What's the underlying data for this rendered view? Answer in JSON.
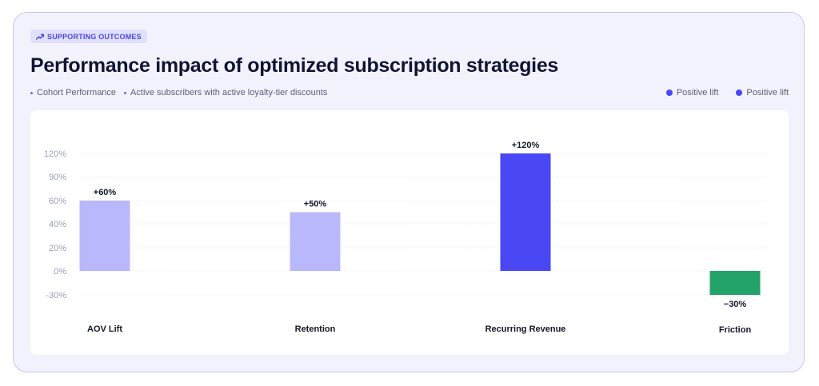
{
  "header": {
    "badge_icon": "trending-up-icon",
    "badge_label": "SUPPORTING OUTCOMES",
    "title": "Performance impact of optimized subscription strategies",
    "subtitle_items": [
      "Cohort Performance",
      "Active subscribers with active loyalty-tier discounts"
    ],
    "legend": [
      {
        "label": "Positive lift",
        "color": "#4a47f5"
      },
      {
        "label": "Positive lift",
        "color": "#4a47f5"
      }
    ]
  },
  "chart_data": {
    "type": "bar",
    "title": "Performance impact of optimized subscription strategies",
    "xlabel": "",
    "ylabel": "",
    "categories": [
      "AOV Lift",
      "Retention",
      "Recurring Revenue",
      "Friction"
    ],
    "values": [
      60,
      50,
      120,
      -30
    ],
    "value_labels": [
      "+60%",
      "+50%",
      "+120%",
      "−30%"
    ],
    "bar_colors": [
      "#b9b8fc",
      "#b9b8fc",
      "#4a47f5",
      "#23a36a"
    ],
    "y_ticks": [
      120,
      90,
      60,
      40,
      20,
      0,
      -30
    ],
    "y_tick_labels": [
      "120%",
      "90%",
      "60%",
      "40%",
      "20%",
      "0%",
      "-30%"
    ],
    "ylim": [
      -30,
      120
    ],
    "grid": true,
    "legend_position": "top-right"
  }
}
